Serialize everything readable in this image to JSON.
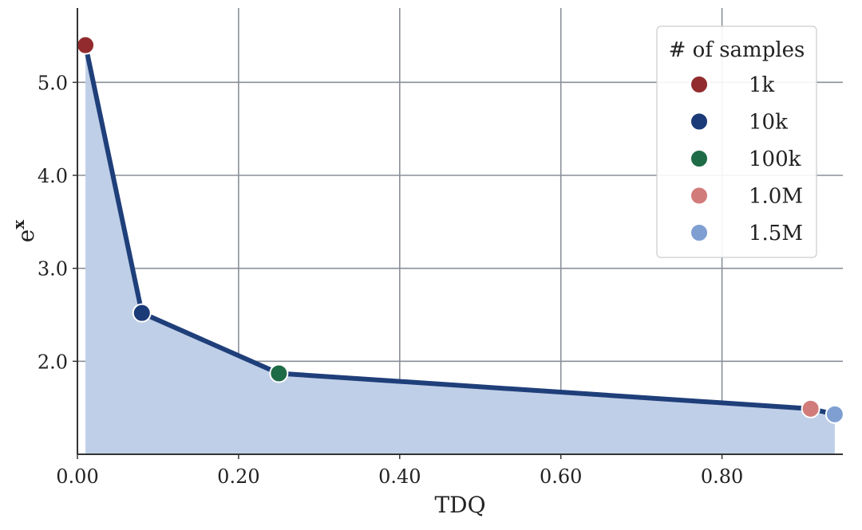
{
  "chart_data": {
    "type": "line",
    "xlabel": "TDQ",
    "ylabel": "e",
    "ylabel_sup": "x",
    "xlim": [
      0.0,
      0.95
    ],
    "ylim": [
      1.0,
      5.8
    ],
    "xticks": [
      0.0,
      0.2,
      0.4,
      0.6,
      0.8
    ],
    "xtick_labels": [
      "0.00",
      "0.20",
      "0.40",
      "0.60",
      "0.80"
    ],
    "yticks": [
      2.0,
      3.0,
      4.0,
      5.0
    ],
    "ytick_labels": [
      "2.0",
      "3.0",
      "4.0",
      "5.0"
    ],
    "grid": true,
    "area_fill": true,
    "line_color": "#1f3f7a",
    "fill_color": "#bfcfe7",
    "points": [
      {
        "name": "1k",
        "x": 0.01,
        "y": 5.4,
        "color": "#922b2d"
      },
      {
        "name": "10k",
        "x": 0.08,
        "y": 2.52,
        "color": "#1b3a78"
      },
      {
        "name": "100k",
        "x": 0.25,
        "y": 1.87,
        "color": "#1e6b47"
      },
      {
        "name": "1.0M",
        "x": 0.91,
        "y": 1.49,
        "color": "#d17b7a"
      },
      {
        "name": "1.5M",
        "x": 0.94,
        "y": 1.43,
        "color": "#7f9fd2"
      }
    ],
    "legend": {
      "title": "# of samples",
      "placement": "top-right",
      "entries": [
        "1k",
        "10k",
        "100k",
        "1.0M",
        "1.5M"
      ]
    }
  }
}
